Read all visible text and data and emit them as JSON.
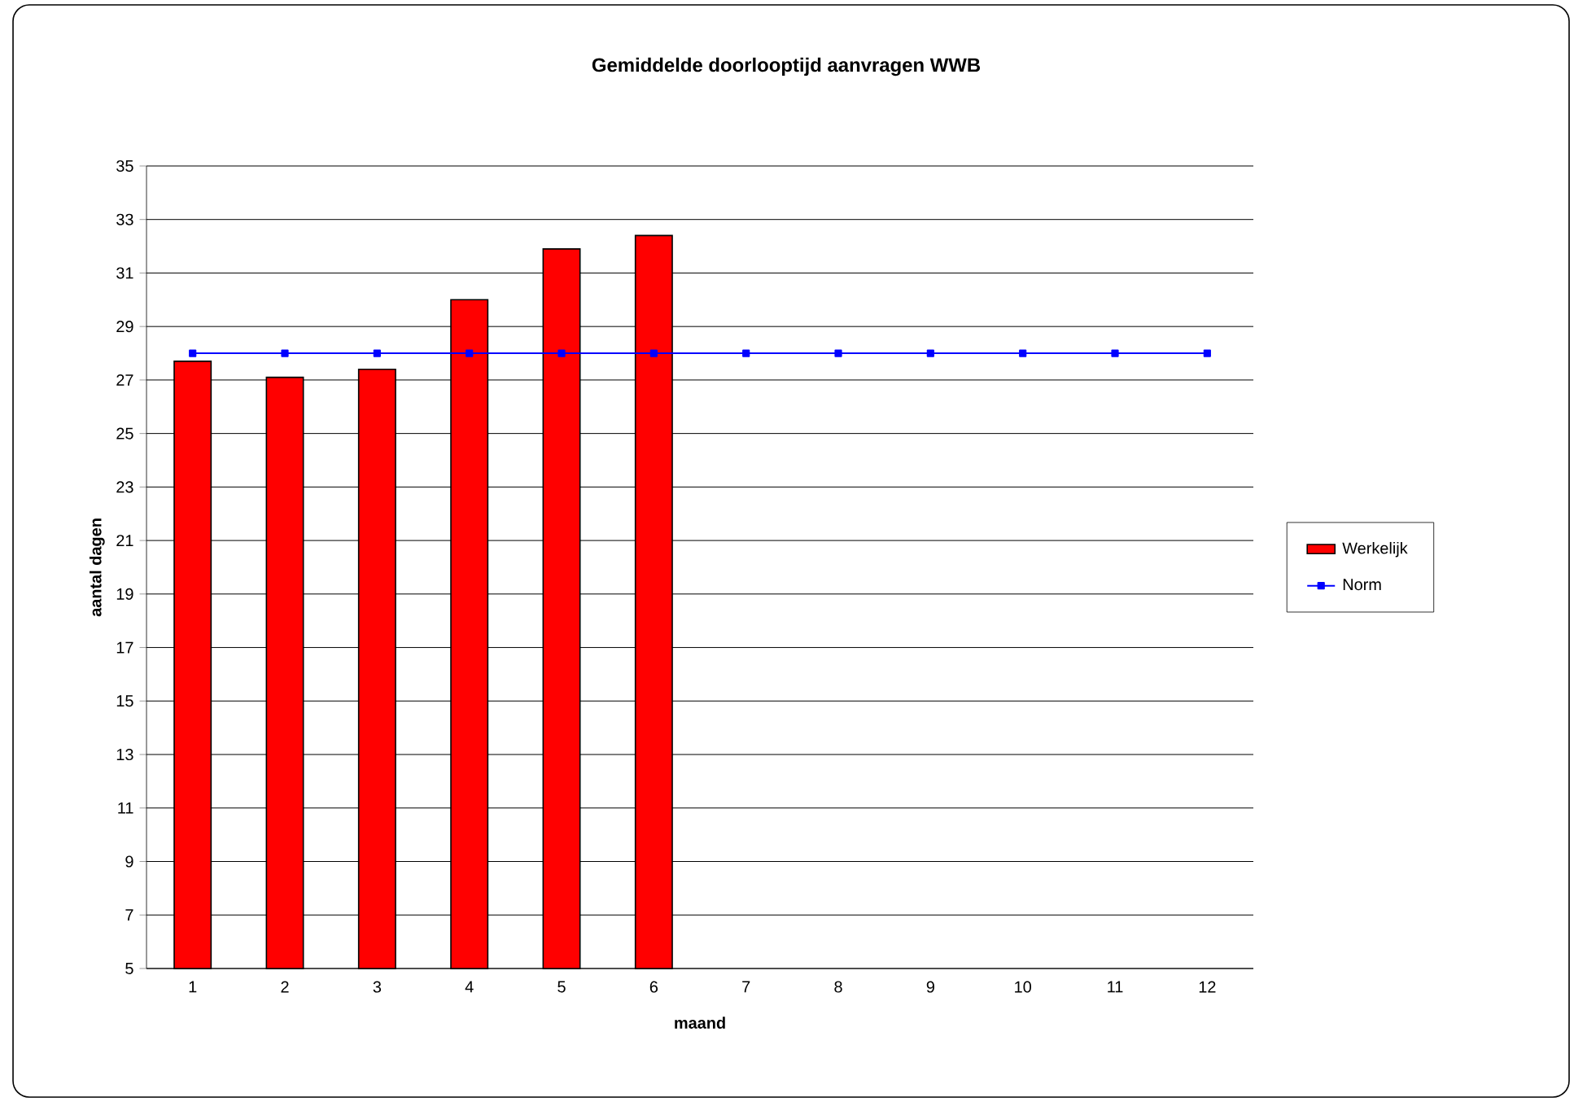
{
  "chart_data": {
    "type": "bar",
    "title": "Gemiddelde doorlooptijd aanvragen WWB",
    "xlabel": "maand",
    "ylabel": "aantal dagen",
    "categories": [
      "1",
      "2",
      "3",
      "4",
      "5",
      "6",
      "7",
      "8",
      "9",
      "10",
      "11",
      "12"
    ],
    "series": [
      {
        "name": "Werkelijk",
        "color": "#ff0000",
        "values": [
          27.7,
          27.1,
          27.4,
          30.0,
          31.9,
          32.4,
          null,
          null,
          null,
          null,
          null,
          null
        ]
      },
      {
        "name": "Norm",
        "type": "line",
        "color": "#0000ff",
        "values": [
          28,
          28,
          28,
          28,
          28,
          28,
          28,
          28,
          28,
          28,
          28,
          28
        ]
      }
    ],
    "ylim": [
      5,
      35
    ],
    "yticks": [
      5,
      7,
      9,
      11,
      13,
      15,
      17,
      19,
      21,
      23,
      25,
      27,
      29,
      31,
      33,
      35
    ],
    "grid": "y",
    "legend": "right",
    "marker": "square"
  }
}
